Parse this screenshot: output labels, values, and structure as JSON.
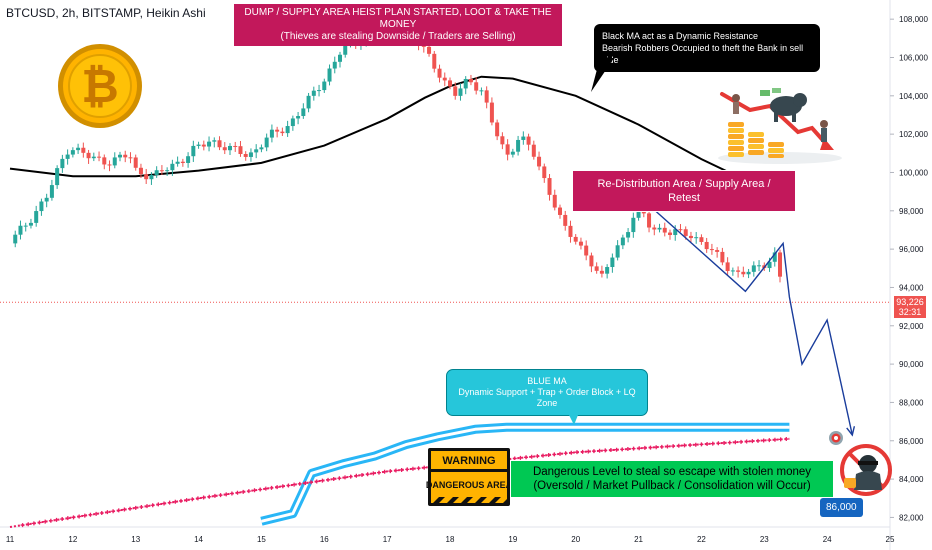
{
  "header": {
    "symbol": "BTCUSD, 2h, BITSTAMP, Heikin Ashi"
  },
  "annotations": {
    "heist_plan_line1": "DUMP / SUPPLY AREA HEIST PLAN STARTED, LOOT & TAKE THE MONEY",
    "heist_plan_line2": "(Thieves are stealing Downside / Traders are Selling)",
    "black_ma_line1": "Black MA act as a Dynamic Resistance",
    "black_ma_line2": "Bearish Robbers Occupied to theft the Bank in sell side",
    "redistribution": "Re-Distribution Area / Supply Area / Retest",
    "blue_ma_line1": "BLUE MA",
    "blue_ma_line2": "Dynamic Support + Trap + Order Block + LQ Zone",
    "danger_line1": "Dangerous Level to steal so escape with stolen money",
    "danger_line2": "(Oversold / Market Pullback / Consolidation will Occur)",
    "warning_top": "WARNING",
    "warning_bottom": "DANGEROUS AREA",
    "target": "86,000"
  },
  "last_price": {
    "value": "93,226",
    "countdown": "32:31"
  },
  "colors": {
    "bull": "#26a69a",
    "bear": "#ef5350",
    "black_ma": "#000000",
    "blue_ma": "#29b6f6",
    "pink_ma": "#e91e63",
    "projection": "#1a3d9c",
    "price_line": "#ef5350"
  },
  "icons": [
    "bitcoin-coin-icon",
    "bear-market-illustration-icon",
    "thief-robber-icon",
    "target-icon"
  ],
  "chart_data": {
    "type": "candlestick",
    "style": "Heikin Ashi",
    "timeframe": "2h",
    "x_ticks": [
      "11",
      "12",
      "13",
      "14",
      "15",
      "16",
      "17",
      "18",
      "19",
      "20",
      "21",
      "22",
      "23",
      "24",
      "25"
    ],
    "y_ticks": [
      "108,000",
      "106,000",
      "104,000",
      "102,000",
      "100,000",
      "98,000",
      "96,000",
      "94,000",
      "92,000",
      "90,000",
      "88,000",
      "86,000",
      "84,000",
      "82,000"
    ],
    "ylim": [
      81500,
      109000
    ],
    "xlim": [
      11,
      25
    ],
    "current_price": 93226,
    "candle_path": [
      [
        11.0,
        96300
      ],
      [
        11.3,
        97500
      ],
      [
        11.6,
        98800
      ],
      [
        11.9,
        101200
      ],
      [
        12.0,
        101300
      ],
      [
        12.3,
        100700
      ],
      [
        12.6,
        100600
      ],
      [
        12.9,
        100900
      ],
      [
        13.0,
        100100
      ],
      [
        13.3,
        99800
      ],
      [
        13.6,
        100400
      ],
      [
        13.9,
        101100
      ],
      [
        14.2,
        101700
      ],
      [
        14.5,
        101200
      ],
      [
        14.8,
        100900
      ],
      [
        15.1,
        101800
      ],
      [
        15.4,
        102400
      ],
      [
        15.7,
        103500
      ],
      [
        16.0,
        104900
      ],
      [
        16.3,
        106500
      ],
      [
        16.6,
        107000
      ],
      [
        16.9,
        107500
      ],
      [
        17.1,
        107300
      ],
      [
        17.4,
        107000
      ],
      [
        17.7,
        106000
      ],
      [
        17.9,
        104700
      ],
      [
        18.1,
        104000
      ],
      [
        18.3,
        105000
      ],
      [
        18.5,
        104200
      ],
      [
        18.7,
        102300
      ],
      [
        18.9,
        100900
      ],
      [
        19.1,
        101800
      ],
      [
        19.3,
        101200
      ],
      [
        19.6,
        98900
      ],
      [
        19.8,
        97100
      ],
      [
        20.0,
        96500
      ],
      [
        20.2,
        95600
      ],
      [
        20.4,
        94300
      ],
      [
        20.6,
        95900
      ],
      [
        20.8,
        96800
      ],
      [
        21.0,
        98200
      ],
      [
        21.2,
        97200
      ],
      [
        21.5,
        96800
      ],
      [
        21.8,
        96900
      ],
      [
        22.0,
        96300
      ],
      [
        22.3,
        95500
      ],
      [
        22.6,
        94600
      ],
      [
        22.8,
        94900
      ],
      [
        23.0,
        95300
      ],
      [
        23.2,
        95700
      ],
      [
        23.3,
        93226
      ]
    ],
    "series": [
      {
        "name": "Black MA",
        "points": [
          [
            11.0,
            100200
          ],
          [
            12.0,
            99800
          ],
          [
            13.0,
            99800
          ],
          [
            14.0,
            100100
          ],
          [
            15.0,
            100500
          ],
          [
            16.0,
            101400
          ],
          [
            17.0,
            102800
          ],
          [
            17.6,
            103900
          ],
          [
            18.0,
            104500
          ],
          [
            18.5,
            105000
          ],
          [
            19.0,
            104900
          ],
          [
            20.0,
            104000
          ],
          [
            21.0,
            102500
          ],
          [
            22.0,
            100700
          ],
          [
            22.7,
            99600
          ]
        ]
      },
      {
        "name": "BLUE MA",
        "points": [
          [
            15.0,
            81800
          ],
          [
            15.5,
            82200
          ],
          [
            15.8,
            84300
          ],
          [
            16.3,
            84800
          ],
          [
            16.8,
            85200
          ],
          [
            17.3,
            85800
          ],
          [
            17.8,
            86200
          ],
          [
            18.4,
            86600
          ],
          [
            18.9,
            86700
          ],
          [
            19.5,
            86700
          ],
          [
            20.5,
            86700
          ],
          [
            21.5,
            86700
          ],
          [
            22.5,
            86700
          ],
          [
            23.4,
            86700
          ]
        ]
      },
      {
        "name": "Pink MA",
        "points": [
          [
            11.0,
            81500
          ],
          [
            14.0,
            83000
          ],
          [
            17.0,
            84400
          ],
          [
            20.0,
            85400
          ],
          [
            23.4,
            86100
          ]
        ]
      }
    ],
    "projection": [
      [
        21.2,
        98200
      ],
      [
        22.7,
        93800
      ],
      [
        23.3,
        96300
      ],
      [
        23.4,
        93500
      ],
      [
        23.6,
        90000
      ],
      [
        24.0,
        92300
      ],
      [
        24.4,
        86300
      ]
    ]
  }
}
